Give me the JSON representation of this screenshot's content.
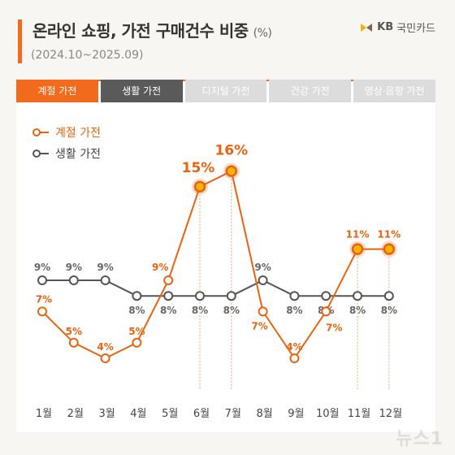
{
  "header": {
    "title": "온라인 쇼핑, 가전 구매건수 비중",
    "unit": "(%)",
    "period": "(2024.10~2025.09)",
    "brand_kb": "KB",
    "brand_name": "국민카드"
  },
  "tabs": [
    {
      "label": "계절 가전",
      "state": "active"
    },
    {
      "label": "생활 가전",
      "state": "dark"
    },
    {
      "label": "디지털 가전",
      "state": "inactive"
    },
    {
      "label": "건강 가전",
      "state": "inactive"
    },
    {
      "label": "영상·음향 가전",
      "state": "inactive"
    }
  ],
  "watermark": "뉴스1",
  "colors": {
    "seasonal": "#e8630f",
    "living": "#555555",
    "accent": "#f26b1d"
  },
  "chart_data": {
    "type": "line",
    "categories": [
      "1월",
      "2월",
      "3월",
      "4월",
      "5월",
      "6월",
      "7월",
      "8월",
      "9월",
      "10월",
      "11월",
      "12월"
    ],
    "series": [
      {
        "name": "계절 가전",
        "values": [
          7,
          5,
          4,
          5,
          9,
          15,
          16,
          7,
          4,
          7,
          11,
          11
        ],
        "labels": [
          "7%",
          "5%",
          "4%",
          "5%",
          "9%",
          "15%",
          "16%",
          "7%",
          "4%",
          "7%",
          "11%",
          "11%"
        ]
      },
      {
        "name": "생활 가전",
        "values": [
          9,
          9,
          9,
          8,
          8,
          8,
          8,
          9,
          8,
          8,
          8,
          8
        ],
        "labels": [
          "9%",
          "9%",
          "9%",
          "8%",
          "8%",
          "8%",
          "8%",
          "9%",
          "8%",
          "8%",
          "8%",
          "8%"
        ]
      }
    ],
    "highlight_indices": [
      5,
      6,
      10,
      11
    ],
    "legend": "top-left",
    "grid": false
  }
}
